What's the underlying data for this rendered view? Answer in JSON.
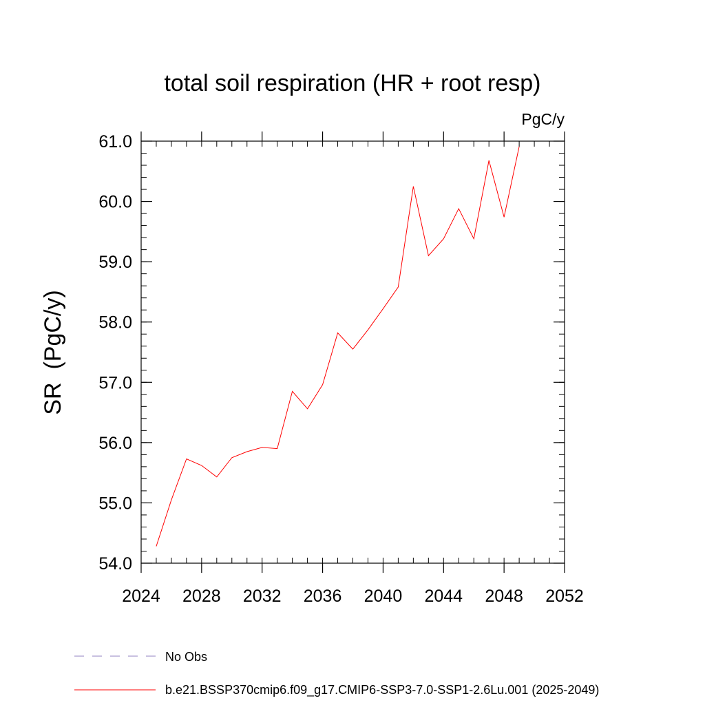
{
  "chart_data": {
    "type": "line",
    "title": "total soil respiration (HR + root resp)",
    "units_label": "PgC/y",
    "xlabel": "",
    "ylabel": "SR  (PgC/y)",
    "xlim": [
      2024,
      2052
    ],
    "ylim": [
      54.0,
      61.0
    ],
    "x_ticks": [
      2024,
      2028,
      2032,
      2036,
      2040,
      2044,
      2048,
      2052
    ],
    "y_ticks": [
      54.0,
      55.0,
      56.0,
      57.0,
      58.0,
      59.0,
      60.0,
      61.0
    ],
    "grid": false,
    "legend_position": "bottom-left",
    "series": [
      {
        "name": "b.e21.BSSP370cmip6.f09_g17.CMIP6-SSP3-7.0-SSP1-2.6Lu.001 (2025-2049)",
        "color": "#ff0000",
        "style": "solid",
        "x": [
          2025,
          2026,
          2027,
          2028,
          2029,
          2030,
          2031,
          2032,
          2033,
          2034,
          2035,
          2036,
          2037,
          2038,
          2039,
          2040,
          2041,
          2042,
          2043,
          2044,
          2045,
          2046,
          2047,
          2048,
          2049
        ],
        "y": [
          54.28,
          55.05,
          55.73,
          55.62,
          55.43,
          55.75,
          55.85,
          55.92,
          55.9,
          56.85,
          56.56,
          56.96,
          57.82,
          57.55,
          57.87,
          58.22,
          58.58,
          60.25,
          59.1,
          59.38,
          59.88,
          59.38,
          60.68,
          59.74,
          60.91
        ]
      }
    ],
    "legend": [
      {
        "label": "No Obs",
        "color": "#9080c0",
        "style": "dashed"
      },
      {
        "label": "b.e21.BSSP370cmip6.f09_g17.CMIP6-SSP3-7.0-SSP1-2.6Lu.001 (2025-2049)",
        "color": "#ff0000",
        "style": "solid"
      }
    ]
  }
}
